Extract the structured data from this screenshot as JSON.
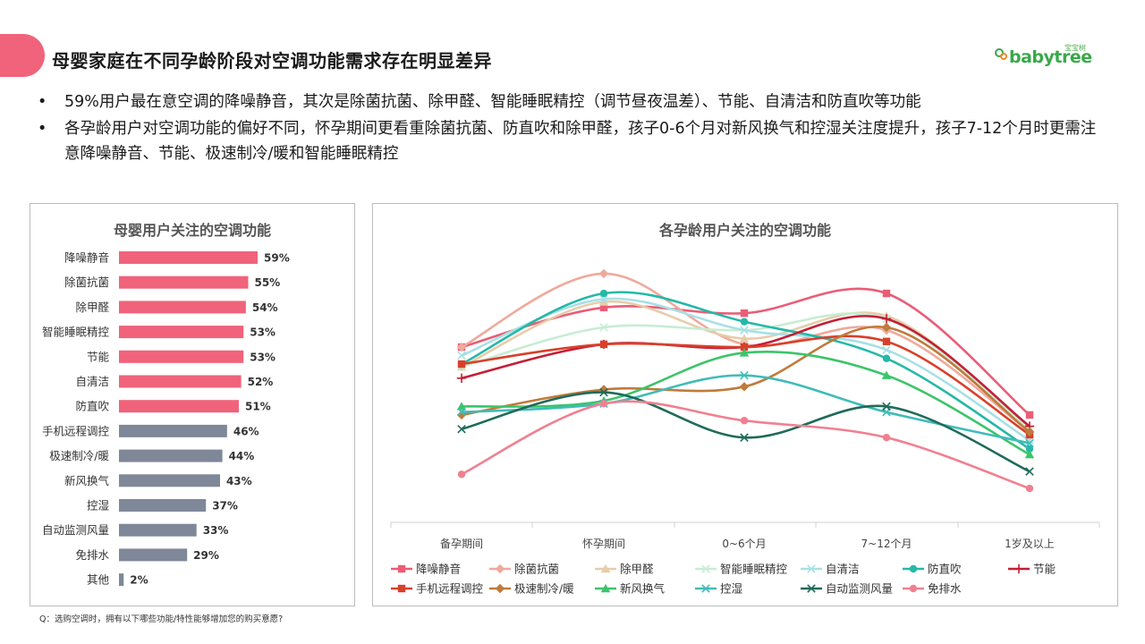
{
  "header": {
    "title": "母婴家庭在不同孕龄阶段对空调功能需求存在明显差异",
    "logo_text": "babytree",
    "logo_sub": "宝宝树"
  },
  "bullets": [
    "59%用户最在意空调的降噪静音，其次是除菌抗菌、除甲醛、智能睡眠精控（调节昼夜温差）、节能、自清洁和防直吹等功能",
    "各孕龄用户对空调功能的偏好不同，怀孕期间更看重除菌抗菌、防直吹和除甲醛，孩子0-6个月对新风换气和控湿关注度提升，孩子7-12个月时更需注意降噪静音、节能、极速制冷/暖和智能睡眠精控"
  ],
  "footnote": "Q：选购空调时，拥有以下哪些功能/特性能够增加您的购买意愿?",
  "colors": {
    "accent_pink": "#f0637a",
    "bar_gray": "#7f8898"
  },
  "chart_data": [
    {
      "type": "bar",
      "orientation": "horizontal",
      "title": "母婴用户关注的空调功能",
      "categories": [
        "降噪静音",
        "除菌抗菌",
        "除甲醛",
        "智能睡眠精控",
        "节能",
        "自清洁",
        "防直吹",
        "手机远程调控",
        "极速制冷/暖",
        "新风换气",
        "控湿",
        "自动监测风量",
        "免排水",
        "其他"
      ],
      "values": [
        59,
        55,
        54,
        53,
        53,
        52,
        51,
        46,
        44,
        43,
        37,
        33,
        29,
        2
      ],
      "labels": [
        "59%",
        "55%",
        "54%",
        "53%",
        "53%",
        "52%",
        "51%",
        "46%",
        "44%",
        "43%",
        "37%",
        "33%",
        "29%",
        "2%"
      ],
      "highlight_count": 7,
      "xlim": [
        0,
        59
      ]
    },
    {
      "type": "line",
      "title": "各孕龄用户关注的空调功能",
      "categories": [
        "备孕期间",
        "怀孕期间",
        "0~6个月",
        "7~12个月",
        "1岁及以上"
      ],
      "ylim": [
        0,
        100
      ],
      "series": [
        {
          "name": "降噪静音",
          "color": "#ea5d76",
          "marker": "square",
          "values": [
            62,
            76,
            74,
            81,
            38
          ]
        },
        {
          "name": "除菌抗菌",
          "color": "#eeaa9c",
          "marker": "diamond",
          "values": [
            62,
            88,
            63,
            68,
            32
          ]
        },
        {
          "name": "除甲醛",
          "color": "#e8cca8",
          "marker": "triangle",
          "values": [
            55,
            78,
            65,
            73,
            33
          ]
        },
        {
          "name": "智能睡眠精控",
          "color": "#c8ecd4",
          "marker": "x",
          "values": [
            55,
            69,
            68,
            72,
            33
          ]
        },
        {
          "name": "自清洁",
          "color": "#a8e0e6",
          "marker": "x",
          "values": [
            59,
            79,
            68,
            61,
            29
          ]
        },
        {
          "name": "防直吹",
          "color": "#25b8a8",
          "marker": "circle",
          "values": [
            56,
            81,
            71,
            58,
            26
          ]
        },
        {
          "name": "节能",
          "color": "#c41e36",
          "marker": "plus",
          "values": [
            51,
            63,
            62,
            72,
            34
          ]
        },
        {
          "name": "手机远程调控",
          "color": "#d8402a",
          "marker": "square",
          "values": [
            56,
            63,
            62,
            64,
            31
          ]
        },
        {
          "name": "极速制冷/暖",
          "color": "#c07a3a",
          "marker": "diamond",
          "values": [
            38,
            47,
            48,
            69,
            32
          ]
        },
        {
          "name": "新风换气",
          "color": "#3cc46a",
          "marker": "triangle",
          "values": [
            41,
            43,
            60,
            52,
            24
          ]
        },
        {
          "name": "控湿",
          "color": "#40bcb8",
          "marker": "x",
          "values": [
            39,
            42,
            52,
            39,
            28
          ]
        },
        {
          "name": "自动监测风量",
          "color": "#1f6b5a",
          "marker": "x",
          "values": [
            33,
            46,
            30,
            41,
            18
          ]
        },
        {
          "name": "免排水",
          "color": "#f08090",
          "marker": "circle",
          "values": [
            17,
            42,
            36,
            30,
            12
          ]
        }
      ]
    }
  ]
}
